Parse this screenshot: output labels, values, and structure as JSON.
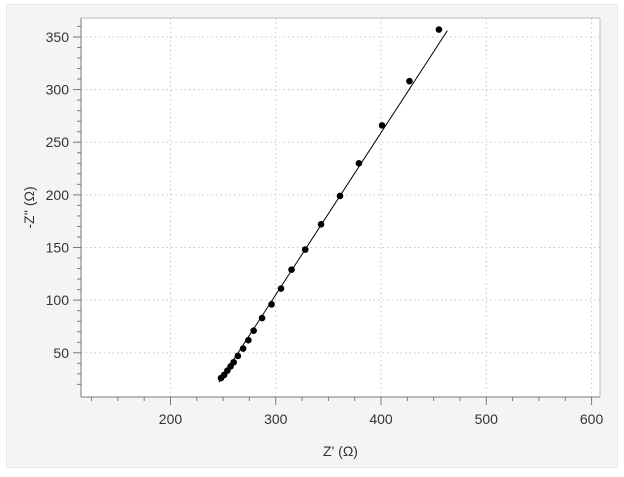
{
  "chart_data": {
    "type": "scatter",
    "title": "",
    "xlabel": "Z' (Ω)",
    "ylabel": "-Z'' (Ω)",
    "xlim": [
      115,
      608
    ],
    "ylim": [
      8,
      368
    ],
    "x_ticks": [
      200,
      300,
      400,
      500,
      600
    ],
    "y_ticks": [
      50,
      100,
      150,
      200,
      250,
      300,
      350
    ],
    "grid": true,
    "series": [
      {
        "kind": "points",
        "color": "#000000",
        "x": [
          248,
          251,
          254,
          257,
          260,
          264,
          269,
          274,
          279,
          287,
          296,
          305,
          315,
          328,
          343,
          361,
          379,
          401,
          427,
          455
        ],
        "y": [
          26,
          29,
          33,
          37,
          41,
          47,
          54,
          62,
          71,
          83,
          96,
          111,
          129,
          148,
          172,
          199,
          230,
          266,
          308,
          357
        ]
      },
      {
        "kind": "fit-line",
        "color": "#000000",
        "x": [
          246,
          463
        ],
        "y": [
          22,
          356
        ]
      }
    ]
  }
}
